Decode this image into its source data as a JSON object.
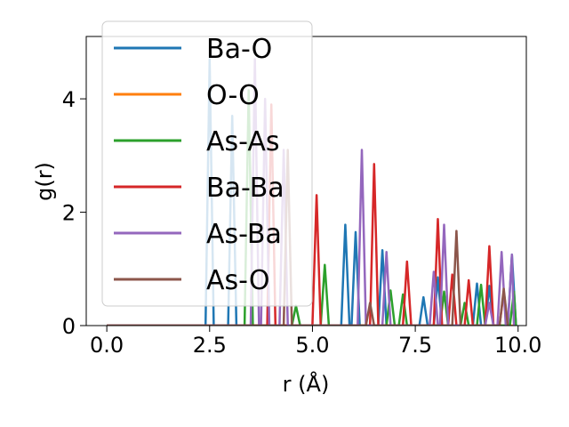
{
  "chart_data": {
    "type": "line",
    "xlabel": "r (Å)",
    "ylabel": "g(r)",
    "xlim": [
      -0.5,
      10.2
    ],
    "ylim": [
      0,
      5.1
    ],
    "xticks": [
      0.0,
      2.5,
      5.0,
      7.5,
      10.0
    ],
    "xtick_labels": [
      "0.0",
      "2.5",
      "5.0",
      "7.5",
      "10.0"
    ],
    "yticks": [
      0,
      2,
      4
    ],
    "ytick_labels": [
      "0",
      "2",
      "4"
    ],
    "grid": false,
    "legend_position": "upper-left",
    "series": [
      {
        "name": "Ba-O",
        "color": "#1f77b4",
        "points": [
          [
            0,
            0
          ],
          [
            2.4,
            0
          ],
          [
            2.5,
            4.7
          ],
          [
            2.6,
            0
          ],
          [
            2.95,
            0
          ],
          [
            3.05,
            3.7
          ],
          [
            3.15,
            0
          ],
          [
            5.7,
            0
          ],
          [
            5.8,
            1.78
          ],
          [
            5.9,
            0
          ],
          [
            5.95,
            0
          ],
          [
            6.05,
            1.65
          ],
          [
            6.15,
            0
          ],
          [
            6.6,
            0
          ],
          [
            6.7,
            1.33
          ],
          [
            6.8,
            0
          ],
          [
            7.6,
            0
          ],
          [
            7.7,
            0.5
          ],
          [
            7.8,
            0
          ],
          [
            7.95,
            0
          ],
          [
            8.05,
            0.85
          ],
          [
            8.15,
            0
          ],
          [
            8.9,
            0
          ],
          [
            9.0,
            0.74
          ],
          [
            9.1,
            0
          ],
          [
            9.2,
            0
          ],
          [
            9.3,
            0.7
          ],
          [
            9.4,
            0
          ],
          [
            9.75,
            0
          ],
          [
            9.85,
            1.25
          ],
          [
            9.95,
            0
          ]
        ]
      },
      {
        "name": "O-O",
        "color": "#ff7f0e",
        "points": [
          [
            0,
            0
          ],
          [
            9.9,
            0
          ]
        ]
      },
      {
        "name": "As-As",
        "color": "#2ca02c",
        "points": [
          [
            0,
            0
          ],
          [
            3.35,
            0
          ],
          [
            3.45,
            4.15
          ],
          [
            3.55,
            0
          ],
          [
            4.5,
            0
          ],
          [
            4.6,
            0.35
          ],
          [
            4.7,
            0
          ],
          [
            5.2,
            0
          ],
          [
            5.3,
            1.07
          ],
          [
            5.4,
            0
          ],
          [
            6.8,
            0
          ],
          [
            6.9,
            0.62
          ],
          [
            7.0,
            0
          ],
          [
            7.1,
            0
          ],
          [
            7.2,
            0.55
          ],
          [
            7.3,
            0
          ],
          [
            8.1,
            0
          ],
          [
            8.2,
            0.6
          ],
          [
            8.3,
            0
          ],
          [
            8.6,
            0
          ],
          [
            8.7,
            0.4
          ],
          [
            8.8,
            0
          ],
          [
            9.0,
            0
          ],
          [
            9.1,
            0.72
          ],
          [
            9.2,
            0
          ],
          [
            9.8,
            0
          ],
          [
            9.9,
            0.6
          ],
          [
            9.95,
            0
          ]
        ]
      },
      {
        "name": "Ba-Ba",
        "color": "#d62728",
        "points": [
          [
            0,
            0
          ],
          [
            3.9,
            0
          ],
          [
            4.0,
            3.9
          ],
          [
            4.1,
            0
          ],
          [
            5.0,
            0
          ],
          [
            5.1,
            2.3
          ],
          [
            5.2,
            0
          ],
          [
            6.4,
            0
          ],
          [
            6.5,
            2.85
          ],
          [
            6.6,
            0
          ],
          [
            7.2,
            0
          ],
          [
            7.3,
            1.13
          ],
          [
            7.4,
            0
          ],
          [
            7.95,
            0
          ],
          [
            8.05,
            1.88
          ],
          [
            8.15,
            0
          ],
          [
            8.3,
            0
          ],
          [
            8.4,
            0.9
          ],
          [
            8.5,
            0
          ],
          [
            8.7,
            0
          ],
          [
            8.8,
            0.8
          ],
          [
            8.9,
            0
          ],
          [
            9.2,
            0
          ],
          [
            9.3,
            1.4
          ],
          [
            9.4,
            0
          ],
          [
            9.55,
            0
          ],
          [
            9.65,
            0.6
          ],
          [
            9.75,
            0
          ]
        ]
      },
      {
        "name": "As-Ba",
        "color": "#9467bd",
        "points": [
          [
            0,
            0
          ],
          [
            3.5,
            0
          ],
          [
            3.6,
            4.7
          ],
          [
            3.7,
            0
          ],
          [
            3.75,
            0
          ],
          [
            3.85,
            4.0
          ],
          [
            3.95,
            0
          ],
          [
            4.2,
            0
          ],
          [
            4.3,
            3.1
          ],
          [
            4.4,
            0
          ],
          [
            6.1,
            0
          ],
          [
            6.2,
            3.1
          ],
          [
            6.3,
            0
          ],
          [
            6.7,
            0
          ],
          [
            6.8,
            1.3
          ],
          [
            6.9,
            0
          ],
          [
            7.85,
            0
          ],
          [
            7.95,
            0.95
          ],
          [
            8.05,
            0
          ],
          [
            8.1,
            0
          ],
          [
            8.2,
            1.78
          ],
          [
            8.3,
            0
          ],
          [
            9.2,
            0
          ],
          [
            9.3,
            0.4
          ],
          [
            9.4,
            0
          ],
          [
            9.5,
            0
          ],
          [
            9.6,
            1.3
          ],
          [
            9.7,
            0
          ],
          [
            9.75,
            0
          ],
          [
            9.85,
            1.25
          ],
          [
            9.9,
            0
          ]
        ]
      },
      {
        "name": "As-O",
        "color": "#8c564b",
        "points": [
          [
            0,
            0
          ],
          [
            4.3,
            0
          ],
          [
            4.4,
            3.1
          ],
          [
            4.5,
            0
          ],
          [
            6.3,
            0
          ],
          [
            6.4,
            0.4
          ],
          [
            6.5,
            0
          ],
          [
            8.4,
            0
          ],
          [
            8.5,
            1.67
          ],
          [
            8.6,
            0
          ],
          [
            9.55,
            0
          ],
          [
            9.65,
            0.65
          ],
          [
            9.75,
            0
          ]
        ]
      }
    ]
  }
}
